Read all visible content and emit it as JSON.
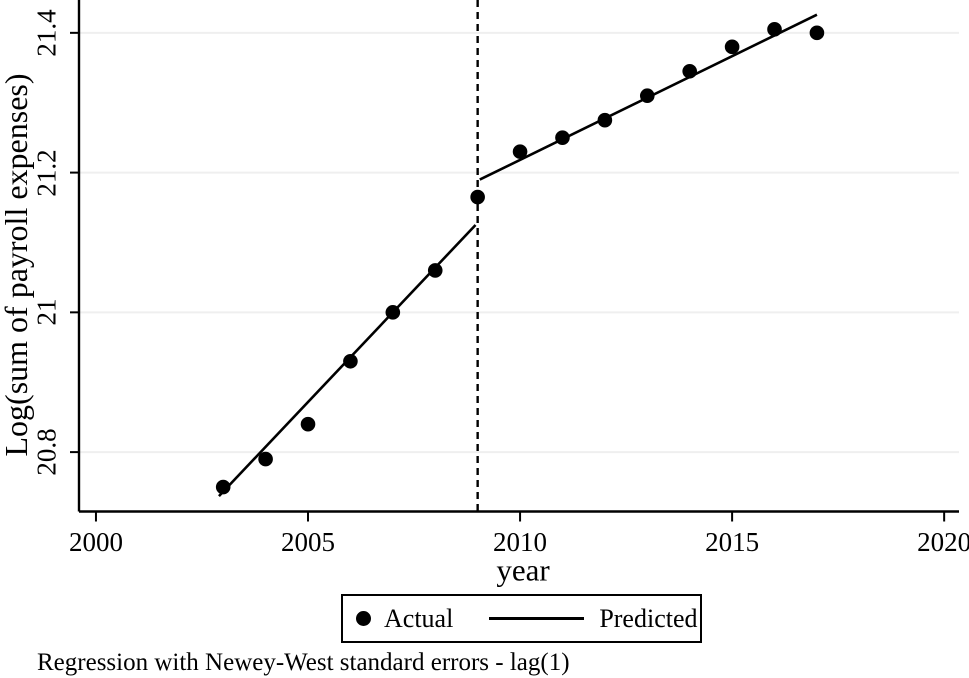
{
  "chart_data": {
    "type": "scatter",
    "title": "",
    "xlabel": "year",
    "ylabel": "Log(sum of payroll expenses)",
    "caption": "Regression with Newey-West standard errors - lag(1)",
    "xlim": [
      1999.6,
      2020.35
    ],
    "ylim": [
      20.715,
      21.447
    ],
    "grid": "horizontal-only",
    "grid_color": "#efefef",
    "axis_color": "#000000",
    "marker_color": "#000000",
    "line_color": "#000000",
    "vline": {
      "x": 2009,
      "style": "dashed"
    },
    "x_ticks": [
      {
        "label": "2000",
        "value": 2000
      },
      {
        "label": "2005",
        "value": 2005
      },
      {
        "label": "2010",
        "value": 2010
      },
      {
        "label": "2015",
        "value": 2015
      },
      {
        "label": "2020",
        "value": 2020
      }
    ],
    "y_ticks": [
      {
        "label": "20.8",
        "value": 20.8
      },
      {
        "label": "21",
        "value": 21.0
      },
      {
        "label": "21.2",
        "value": 21.2
      },
      {
        "label": "21.4",
        "value": 21.4
      }
    ],
    "series": [
      {
        "name": "Actual",
        "type": "scatter",
        "x": [
          2003,
          2004,
          2005,
          2006,
          2007,
          2008,
          2009,
          2010,
          2011,
          2012,
          2013,
          2014,
          2015,
          2016,
          2017
        ],
        "y": [
          20.75,
          20.79,
          20.84,
          20.93,
          21.0,
          21.06,
          21.165,
          21.23,
          21.25,
          21.275,
          21.31,
          21.345,
          21.38,
          21.405,
          21.4
        ]
      },
      {
        "name": "Predicted",
        "type": "line",
        "segments": [
          {
            "x": [
              2002.9,
              2008.95
            ],
            "y": [
              20.737,
              21.125
            ]
          },
          {
            "x": [
              2009.05,
              2017.0
            ],
            "y": [
              21.19,
              21.426
            ]
          }
        ]
      }
    ],
    "legend": {
      "position": "bottom-center",
      "items": [
        {
          "label": "Actual",
          "marker": "dot"
        },
        {
          "label": "Predicted",
          "marker": "line"
        }
      ]
    }
  }
}
